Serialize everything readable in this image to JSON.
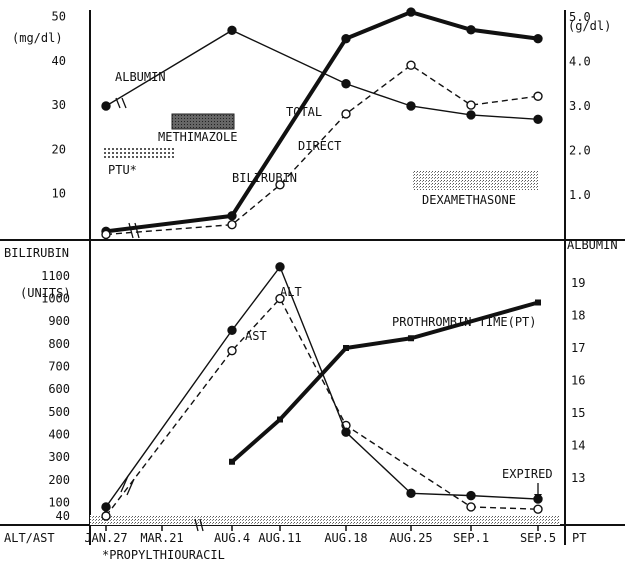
{
  "chart_data": [
    {
      "panel": "top",
      "type": "line",
      "x_categories": [
        "JAN.27",
        "MAR.21",
        "AUG.4",
        "AUG.11",
        "AUG.18",
        "AUG.25",
        "SEP.1",
        "SEP.5"
      ],
      "left_axis": {
        "unit": "(mg/dl)",
        "ticks": [
          "50",
          "40",
          "30",
          "20",
          "10"
        ],
        "ylim": [
          0,
          50
        ]
      },
      "right_axis": {
        "unit": "(g/dl)",
        "ticks": [
          "5.0",
          "4.0",
          "3.0",
          "2.0",
          "1.0"
        ],
        "ylim": [
          0,
          5
        ]
      },
      "series": [
        {
          "name": "ALBUMIN",
          "axis": "right",
          "style": "solid-thin-filled",
          "points": [
            [
              "JAN.27",
              3.0
            ],
            [
              "AUG.4",
              4.7
            ],
            [
              "AUG.18",
              3.5
            ],
            [
              "AUG.25",
              3.0
            ],
            [
              "SEP.1",
              2.8
            ],
            [
              "SEP.5",
              2.7
            ]
          ]
        },
        {
          "name": "TOTAL",
          "axis": "left",
          "style": "solid-thick-filled",
          "points": [
            [
              "JAN.27",
              1.5
            ],
            [
              "AUG.4",
              5
            ],
            [
              "AUG.18",
              45
            ],
            [
              "AUG.25",
              51
            ],
            [
              "SEP.1",
              47
            ],
            [
              "SEP.5",
              45
            ]
          ]
        },
        {
          "name": "DIRECT",
          "axis": "left",
          "style": "dashed-open",
          "points": [
            [
              "JAN.27",
              0.8
            ],
            [
              "AUG.4",
              3
            ],
            [
              "AUG.11",
              12
            ],
            [
              "AUG.18",
              28
            ],
            [
              "AUG.25",
              39
            ],
            [
              "SEP.1",
              30
            ],
            [
              "SEP.5",
              32
            ]
          ]
        }
      ],
      "annotations": {
        "albumin": "ALBUMIN",
        "total": "TOTAL",
        "direct": "DIRECT",
        "bilirubin": "BILIRUBIN",
        "methimazole": "METHIMAZOLE",
        "ptu": "PTU*",
        "dexamethasone": "DEXAMETHASONE",
        "bilirubin_axis": "BILIRUBIN",
        "albumin_axis": "ALBUMIN"
      }
    },
    {
      "panel": "bottom",
      "type": "line",
      "x_categories": [
        "JAN.27",
        "MAR.21",
        "AUG.4",
        "AUG.11",
        "AUG.18",
        "AUG.25",
        "SEP.1",
        "SEP.5"
      ],
      "x_tick_labels": [
        "JAN.27",
        "MAR.21",
        "AUG.4",
        "AUG.11",
        "AUG.18",
        "AUG.25",
        "SEP.1",
        "SEP.5"
      ],
      "left_axis": {
        "unit": "(UNITS)",
        "ticks": [
          "1100",
          "1000",
          "900",
          "800",
          "700",
          "600",
          "500",
          "400",
          "300",
          "200",
          "100",
          "40"
        ],
        "ylim": [
          0,
          1100
        ]
      },
      "right_axis": {
        "ticks": [
          "19",
          "18",
          "17",
          "16",
          "15",
          "14",
          "13"
        ],
        "ylim": [
          12,
          19
        ]
      },
      "series": [
        {
          "name": "AST",
          "axis": "left",
          "style": "dashed-open",
          "points": [
            [
              "JAN.27",
              40
            ],
            [
              "AUG.4",
              770
            ],
            [
              "AUG.11",
              1000
            ],
            [
              "AUG.18",
              440
            ],
            [
              "SEP.1",
              80
            ],
            [
              "SEP.5",
              70
            ]
          ]
        },
        {
          "name": "ALT",
          "axis": "left",
          "style": "solid-thin-filled",
          "points": [
            [
              "JAN.27",
              80
            ],
            [
              "AUG.4",
              860
            ],
            [
              "AUG.11",
              1140
            ],
            [
              "AUG.18",
              410
            ],
            [
              "AUG.25",
              140
            ],
            [
              "SEP.1",
              130
            ],
            [
              "SEP.5",
              115
            ]
          ]
        },
        {
          "name": "PROTHROMBIN TIME(PT)",
          "axis": "right",
          "style": "solid-thick",
          "points": [
            [
              "AUG.4",
              13.5
            ],
            [
              "AUG.11",
              14.8
            ],
            [
              "AUG.18",
              17.0
            ],
            [
              "AUG.25",
              17.3
            ],
            [
              "SEP.5",
              18.4
            ]
          ]
        }
      ],
      "annotations": {
        "ast": "AST",
        "alt": "ALT",
        "pt": "PROTHROMBIN TIME(PT)",
        "expired": "EXPIRED",
        "alt_ast_axis": "ALT/AST",
        "pt_axis": "PT",
        "footnote": "*PROPYLTHIOURACIL"
      }
    }
  ]
}
